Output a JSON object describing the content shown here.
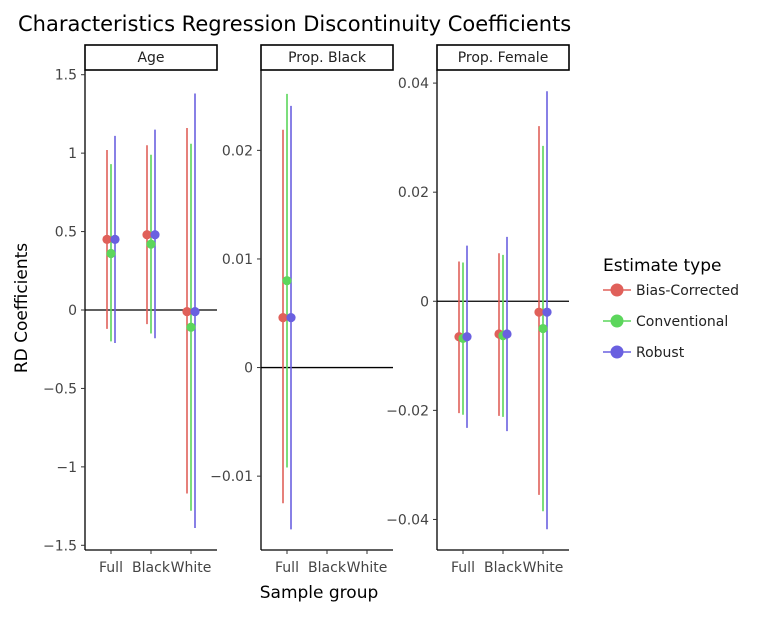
{
  "chart_data": {
    "type": "errorbar",
    "title": "Characteristics Regression Discontinuity Coefficients",
    "xlabel": "Sample group",
    "ylabel": "RD Coefficients",
    "categories": [
      "Full",
      "Black",
      "White"
    ],
    "legend": {
      "title": "Estimate type",
      "placement": "right",
      "entries": [
        {
          "name": "Bias-Corrected",
          "color": "#e0605a"
        },
        {
          "name": "Conventional",
          "color": "#5cd65c"
        },
        {
          "name": "Robust",
          "color": "#6a60e0"
        }
      ]
    },
    "grid": false,
    "panels": [
      {
        "title": "Age",
        "ylim": [
          -1.53,
          1.53
        ],
        "yticks": [
          -1.5,
          -1,
          -0.5,
          0,
          0.5,
          1,
          1.5
        ],
        "ytick_labels": [
          "−1.5",
          "−1",
          "−0.5",
          "0",
          "0.5",
          "1",
          "1.5"
        ],
        "reference_line": 0,
        "series": [
          {
            "name": "Bias-Corrected",
            "points": [
              {
                "category": "Full",
                "y": 0.45,
                "low": -0.12,
                "high": 1.02
              },
              {
                "category": "Black",
                "y": 0.48,
                "low": -0.09,
                "high": 1.05
              },
              {
                "category": "White",
                "y": -0.01,
                "low": -1.17,
                "high": 1.16
              }
            ]
          },
          {
            "name": "Conventional",
            "points": [
              {
                "category": "Full",
                "y": 0.36,
                "low": -0.2,
                "high": 0.93
              },
              {
                "category": "Black",
                "y": 0.42,
                "low": -0.15,
                "high": 0.99
              },
              {
                "category": "White",
                "y": -0.11,
                "low": -1.28,
                "high": 1.06
              }
            ]
          },
          {
            "name": "Robust",
            "points": [
              {
                "category": "Full",
                "y": 0.45,
                "low": -0.21,
                "high": 1.11
              },
              {
                "category": "Black",
                "y": 0.48,
                "low": -0.18,
                "high": 1.15
              },
              {
                "category": "White",
                "y": -0.01,
                "low": -1.39,
                "high": 1.38
              }
            ]
          }
        ]
      },
      {
        "title": "Prop. Black",
        "ylim": [
          -0.0168,
          0.0274
        ],
        "yticks": [
          -0.01,
          0,
          0.01,
          0.02
        ],
        "ytick_labels": [
          "−0.01",
          "0",
          "0.01",
          "0.02"
        ],
        "reference_line": 0,
        "series": [
          {
            "name": "Bias-Corrected",
            "points": [
              {
                "category": "Full",
                "y": 0.0046,
                "low": -0.0125,
                "high": 0.0219
              }
            ]
          },
          {
            "name": "Conventional",
            "points": [
              {
                "category": "Full",
                "y": 0.008,
                "low": -0.0092,
                "high": 0.0252
              }
            ]
          },
          {
            "name": "Robust",
            "points": [
              {
                "category": "Full",
                "y": 0.0046,
                "low": -0.0149,
                "high": 0.0241
              }
            ]
          }
        ]
      },
      {
        "title": "Prop. Female",
        "ylim": [
          -0.0456,
          0.0424
        ],
        "yticks": [
          -0.04,
          -0.02,
          0,
          0.02,
          0.04
        ],
        "ytick_labels": [
          "−0.04",
          "−0.02",
          "0",
          "0.02",
          "0.04"
        ],
        "reference_line": 0,
        "series": [
          {
            "name": "Bias-Corrected",
            "points": [
              {
                "category": "Full",
                "y": -0.0065,
                "low": -0.0205,
                "high": 0.0073
              },
              {
                "category": "Black",
                "y": -0.006,
                "low": -0.021,
                "high": 0.0088
              },
              {
                "category": "White",
                "y": -0.002,
                "low": -0.0355,
                "high": 0.0321
              }
            ]
          },
          {
            "name": "Conventional",
            "points": [
              {
                "category": "Full",
                "y": -0.0068,
                "low": -0.0208,
                "high": 0.0071
              },
              {
                "category": "Black",
                "y": -0.0063,
                "low": -0.0212,
                "high": 0.0085
              },
              {
                "category": "White",
                "y": -0.005,
                "low": -0.0385,
                "high": 0.0285
              }
            ]
          },
          {
            "name": "Robust",
            "points": [
              {
                "category": "Full",
                "y": -0.0065,
                "low": -0.0232,
                "high": 0.0102
              },
              {
                "category": "Black",
                "y": -0.006,
                "low": -0.0238,
                "high": 0.0118
              },
              {
                "category": "White",
                "y": -0.002,
                "low": -0.0418,
                "high": 0.0385
              }
            ]
          }
        ]
      }
    ]
  }
}
